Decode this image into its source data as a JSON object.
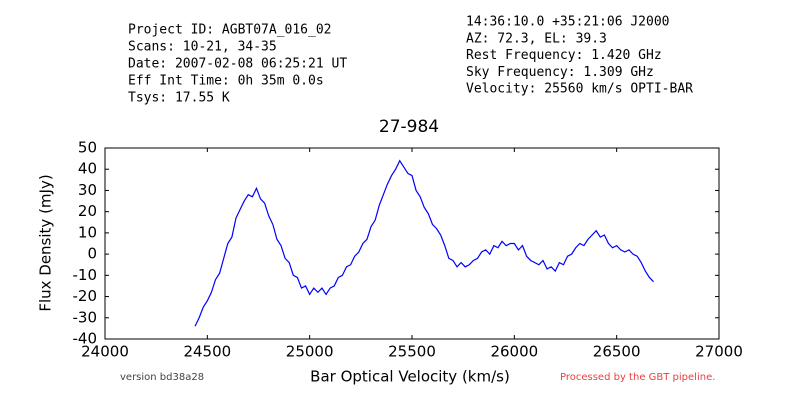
{
  "header": {
    "left": [
      "Project ID: AGBT07A_016_02",
      "Scans: 10-21, 34-35",
      "Date: 2007-02-08 06:25:21 UT",
      "Eff Int Time: 0h 35m 0.0s",
      "Tsys: 17.55 K"
    ],
    "right": [
      "14:36:10.0 +35:21:06 J2000",
      "AZ: 72.3, EL: 39.3",
      "Rest Frequency:   1.420 GHz",
      "Sky Frequency:    1.309 GHz",
      "Velocity: 25560 km/s OPTI-BAR"
    ]
  },
  "footer": {
    "version": "version bd38a28",
    "pipeline": "Processed by the GBT pipeline."
  },
  "chart_data": {
    "type": "line",
    "title": "27-984",
    "xlabel": "Bar Optical Velocity (km/s)",
    "ylabel": "Flux Density (mJy)",
    "xlim": [
      24000,
      27000
    ],
    "ylim": [
      -40,
      50
    ],
    "xticks": [
      24000,
      24500,
      25000,
      25500,
      26000,
      26500,
      27000
    ],
    "yticks": [
      -40,
      -30,
      -20,
      -10,
      0,
      10,
      20,
      30,
      40,
      50
    ],
    "x": [
      24440,
      24460,
      24480,
      24500,
      24520,
      24540,
      24560,
      24580,
      24600,
      24620,
      24640,
      24660,
      24680,
      24700,
      24720,
      24740,
      24760,
      24780,
      24800,
      24820,
      24840,
      24860,
      24880,
      24900,
      24920,
      24940,
      24960,
      24980,
      25000,
      25020,
      25040,
      25060,
      25080,
      25100,
      25120,
      25140,
      25160,
      25180,
      25200,
      25220,
      25240,
      25260,
      25280,
      25300,
      25320,
      25340,
      25360,
      25380,
      25400,
      25420,
      25440,
      25460,
      25480,
      25500,
      25520,
      25540,
      25560,
      25580,
      25600,
      25620,
      25640,
      25660,
      25680,
      25700,
      25720,
      25740,
      25760,
      25780,
      25800,
      25820,
      25840,
      25860,
      25880,
      25900,
      25920,
      25940,
      25960,
      25980,
      26000,
      26020,
      26040,
      26060,
      26080,
      26100,
      26120,
      26140,
      26160,
      26180,
      26200,
      26220,
      26240,
      26260,
      26280,
      26300,
      26320,
      26340,
      26360,
      26380,
      26400,
      26420,
      26440,
      26460,
      26480,
      26500,
      26520,
      26540,
      26560,
      26580,
      26600,
      26620,
      26640,
      26660,
      26680
    ],
    "series": [
      {
        "color": "#0000ff",
        "values": [
          -34,
          -30,
          -25,
          -22,
          -18,
          -12,
          -9,
          -2,
          5,
          8,
          17,
          21,
          25,
          28,
          27,
          31,
          26,
          24,
          18,
          14,
          7,
          4,
          -2,
          -4,
          -10,
          -11,
          -16,
          -15,
          -19,
          -16,
          -18,
          -16,
          -19,
          -16,
          -15,
          -11,
          -10,
          -6,
          -5,
          -1,
          1,
          5,
          7,
          13,
          16,
          23,
          28,
          33,
          37,
          40,
          44,
          41,
          38,
          37,
          30,
          27,
          22,
          19,
          14,
          12,
          9,
          4,
          -2,
          -3,
          -6,
          -4,
          -6,
          -5,
          -3,
          -2,
          1,
          2,
          0,
          4,
          3,
          6,
          4,
          5,
          5,
          2,
          4,
          -1,
          -3,
          -4,
          -5,
          -3,
          -7,
          -6,
          -8,
          -4,
          -5,
          -1,
          0,
          3,
          5,
          4,
          7,
          9,
          11,
          8,
          9,
          5,
          3,
          4,
          2,
          1,
          2,
          0,
          -1,
          -4,
          -8,
          -11,
          -13
        ]
      }
    ]
  }
}
